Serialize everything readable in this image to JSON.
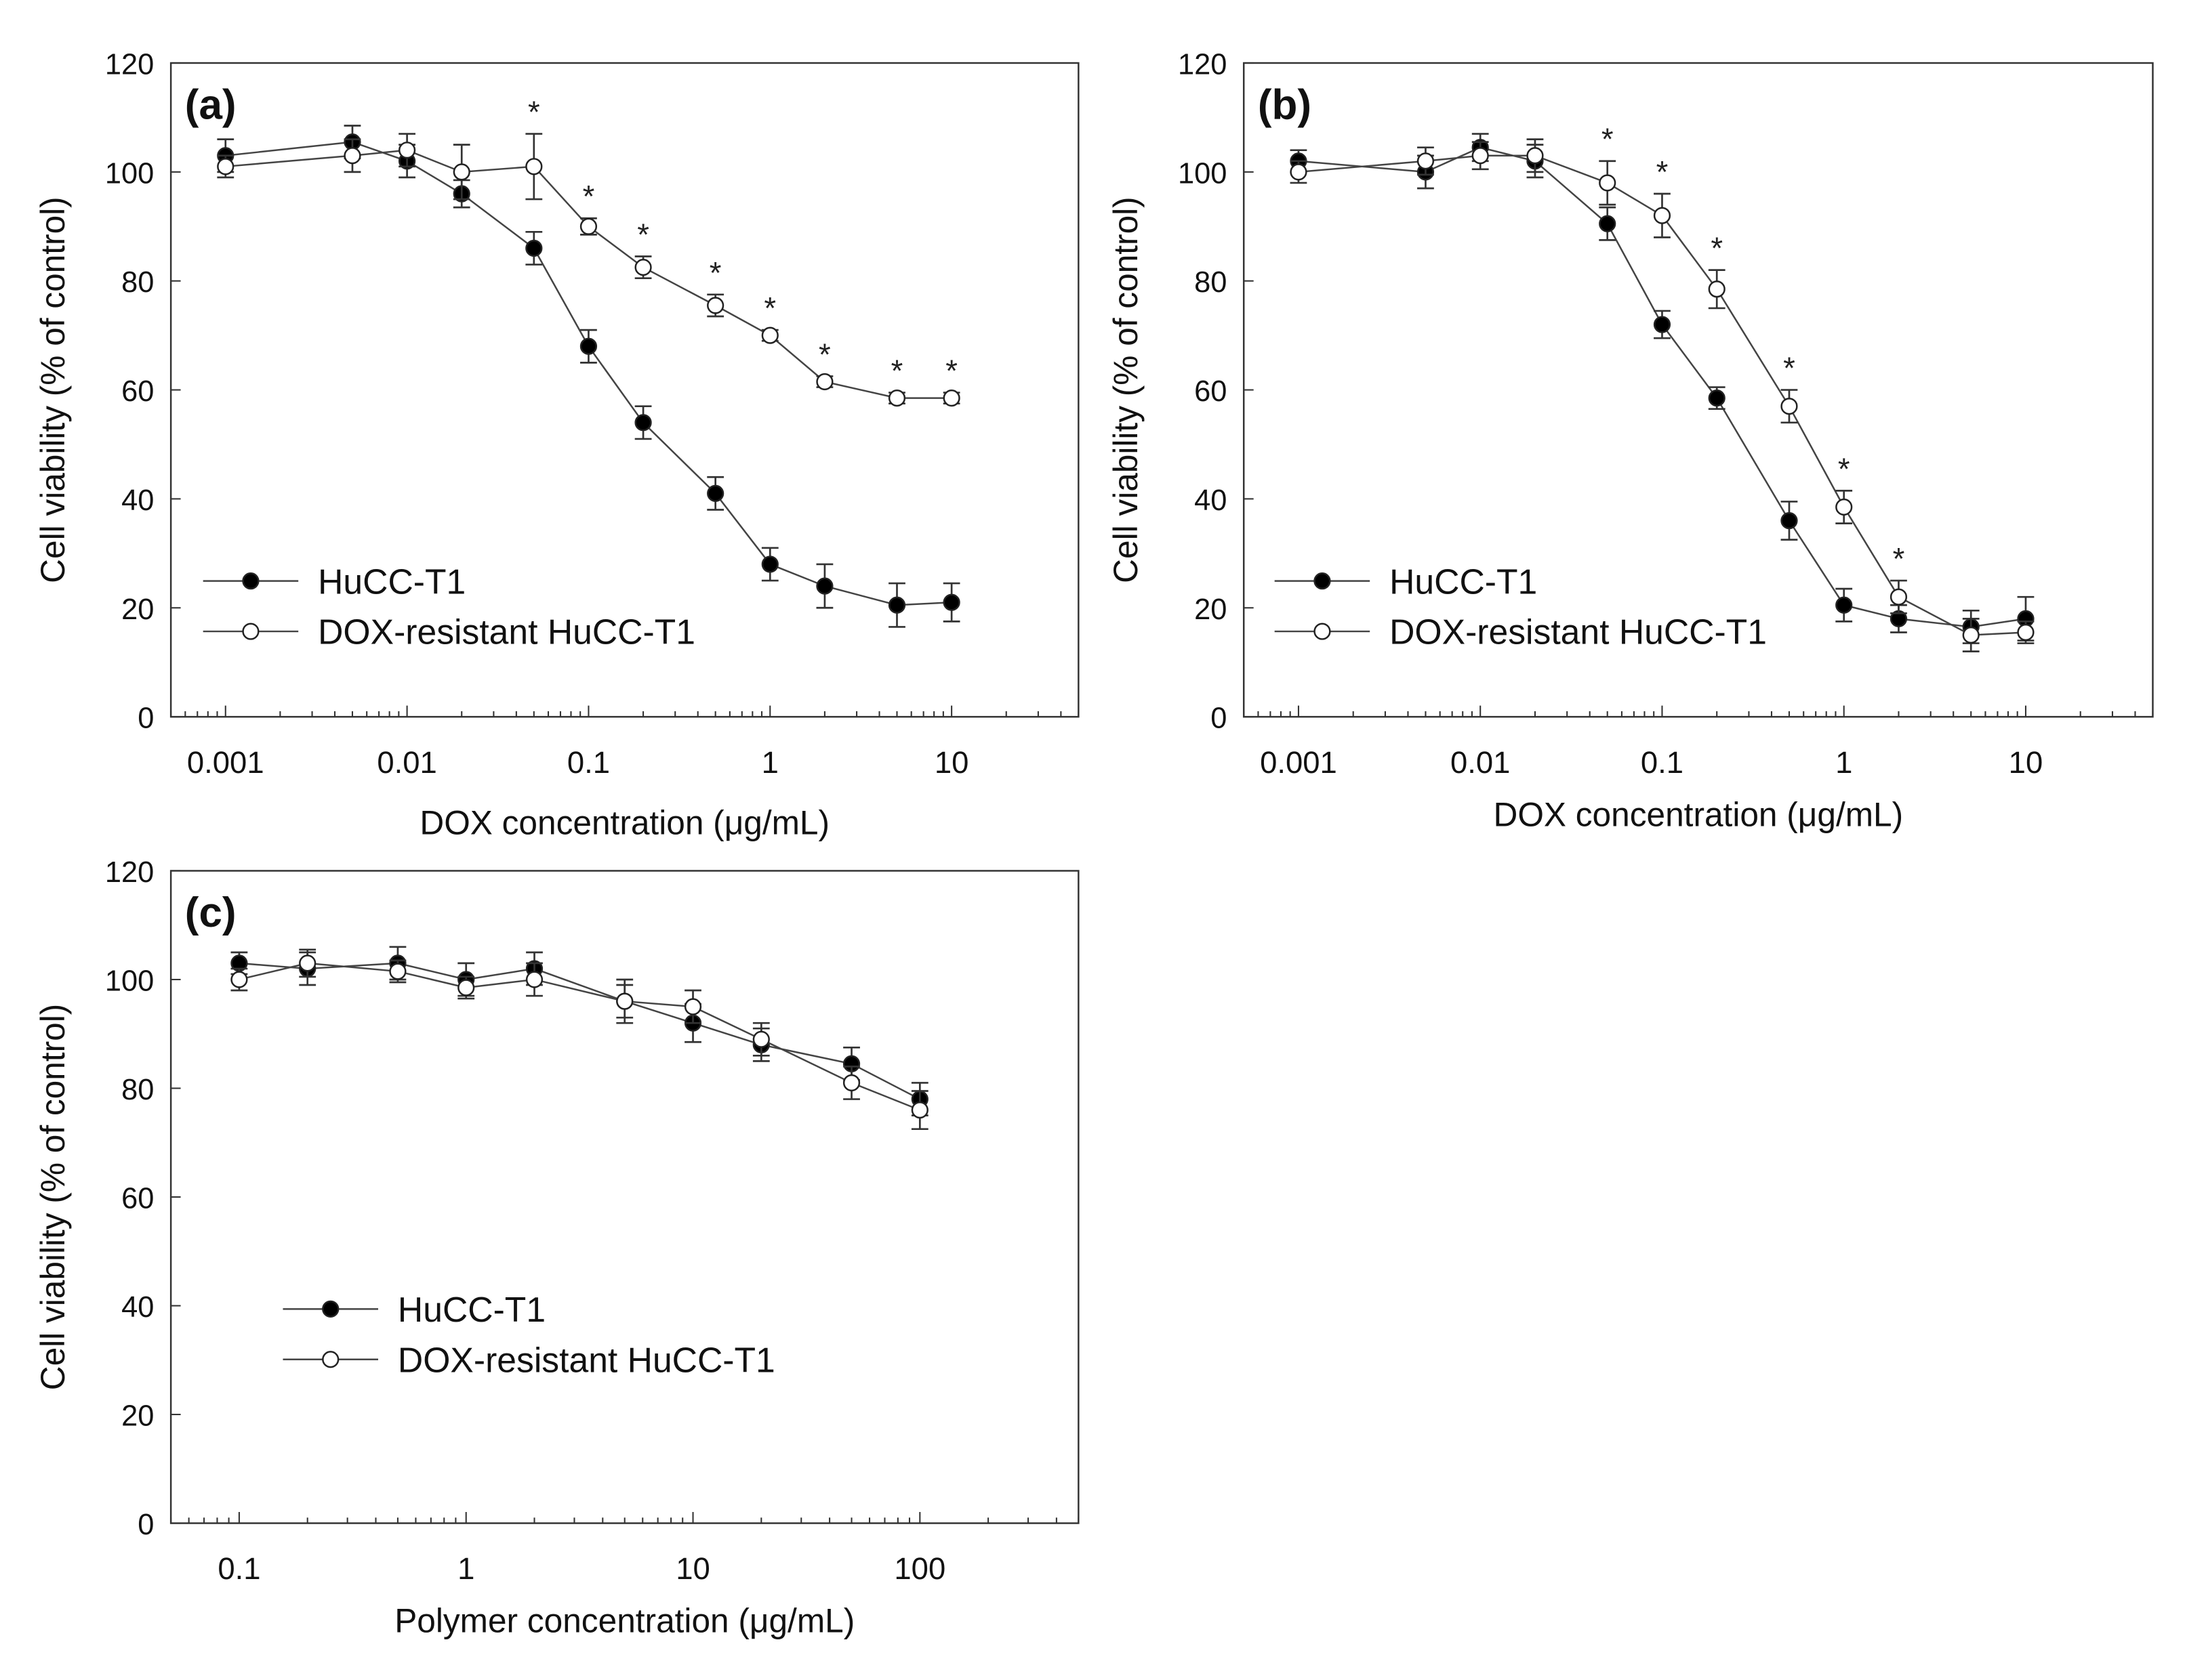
{
  "chart_data": [
    {
      "type": "line",
      "panel_label": "(a)",
      "xlabel": "DOX concentration (μg/mL)",
      "ylabel": "Cell viability (% of control)",
      "xscale": "log",
      "xlim": [
        0.0005,
        50
      ],
      "ylim": [
        0,
        120
      ],
      "xticks": [
        0.001,
        0.01,
        0.1,
        1,
        10
      ],
      "xtick_labels": [
        "0.001",
        "0.01",
        "0.1",
        "1",
        "10"
      ],
      "yticks": [
        0,
        20,
        40,
        60,
        80,
        100,
        120
      ],
      "legend_position": "bottom-left",
      "x": [
        0.001,
        0.005,
        0.01,
        0.02,
        0.05,
        0.1,
        0.2,
        0.5,
        1,
        2,
        5,
        10
      ],
      "series": [
        {
          "name": "HuCC-T1",
          "marker": "filled-circle",
          "values": [
            103,
            105.5,
            102,
            96,
            86,
            68,
            54,
            41,
            28,
            24,
            20.5,
            21
          ],
          "errors": [
            3,
            3,
            3,
            2.5,
            3,
            3,
            3,
            3,
            3,
            4,
            4,
            3.5
          ]
        },
        {
          "name": "DOX-resistant HuCC-T1",
          "marker": "open-circle",
          "values": [
            101,
            103,
            104,
            100,
            101,
            90,
            82.5,
            75.5,
            70,
            61.5,
            58.5,
            58.5
          ],
          "errors": [
            2,
            3,
            3,
            5,
            6,
            1.5,
            2,
            2,
            1,
            1,
            1,
            1
          ]
        }
      ],
      "significance_marker": "*",
      "significant_x": [
        0.05,
        0.1,
        0.2,
        0.5,
        1,
        2,
        5,
        10
      ]
    },
    {
      "type": "line",
      "panel_label": "(b)",
      "xlabel": "DOX concentration (μg/mL)",
      "ylabel": "Cell viability (% of control)",
      "xscale": "log",
      "xlim": [
        0.0005,
        50
      ],
      "ylim": [
        0,
        120
      ],
      "xticks": [
        0.001,
        0.01,
        0.1,
        1,
        10
      ],
      "xtick_labels": [
        "0.001",
        "0.01",
        "0.1",
        "1",
        "10"
      ],
      "yticks": [
        0,
        20,
        40,
        60,
        80,
        100,
        120
      ],
      "legend_position": "bottom-left",
      "x": [
        0.001,
        0.005,
        0.01,
        0.02,
        0.05,
        0.1,
        0.2,
        0.5,
        1,
        2,
        5,
        10
      ],
      "series": [
        {
          "name": "HuCC-T1",
          "marker": "filled-circle",
          "values": [
            102,
            100,
            104.5,
            102,
            90.5,
            72,
            58.5,
            36,
            20.5,
            18,
            16.5,
            18
          ],
          "errors": [
            2,
            3,
            2.5,
            3,
            3,
            2.5,
            2,
            3.5,
            3,
            2.5,
            3,
            4
          ]
        },
        {
          "name": "DOX-resistant HuCC-T1",
          "marker": "open-circle",
          "values": [
            100,
            102,
            103,
            103,
            98,
            92,
            78.5,
            57,
            38.5,
            22,
            15,
            15.5
          ],
          "errors": [
            2,
            2.5,
            2.5,
            3,
            4,
            4,
            3.5,
            3,
            3,
            3,
            3,
            2
          ]
        }
      ],
      "significance_marker": "*",
      "significant_x": [
        0.05,
        0.1,
        0.2,
        0.5,
        1,
        2
      ]
    },
    {
      "type": "line",
      "panel_label": "(c)",
      "xlabel": "Polymer concentration (μg/mL)",
      "ylabel": "Cell viability (% of control)",
      "xscale": "log",
      "xlim": [
        0.05,
        500
      ],
      "ylim": [
        0,
        120
      ],
      "xticks": [
        0.1,
        1,
        10,
        100
      ],
      "xtick_labels": [
        "0.1",
        "1",
        "10",
        "100"
      ],
      "yticks": [
        0,
        20,
        40,
        60,
        80,
        100,
        120
      ],
      "legend_position": "center-left",
      "x": [
        0.1,
        0.2,
        0.5,
        1,
        2,
        5,
        10,
        20,
        50,
        100
      ],
      "series": [
        {
          "name": "HuCC-T1",
          "marker": "filled-circle",
          "values": [
            103,
            102,
            103,
            100,
            102,
            96,
            92,
            88,
            84.5,
            78
          ],
          "errors": [
            2,
            3,
            3,
            3,
            3,
            3,
            3.5,
            3,
            3,
            3
          ]
        },
        {
          "name": "DOX-resistant HuCC-T1",
          "marker": "open-circle",
          "values": [
            100,
            103,
            101.5,
            98.5,
            100,
            96,
            95,
            89,
            81,
            76
          ],
          "errors": [
            2,
            2.5,
            2,
            2,
            3,
            4,
            3,
            3,
            3,
            3.5
          ]
        }
      ],
      "significance_marker": "*",
      "significant_x": []
    }
  ]
}
